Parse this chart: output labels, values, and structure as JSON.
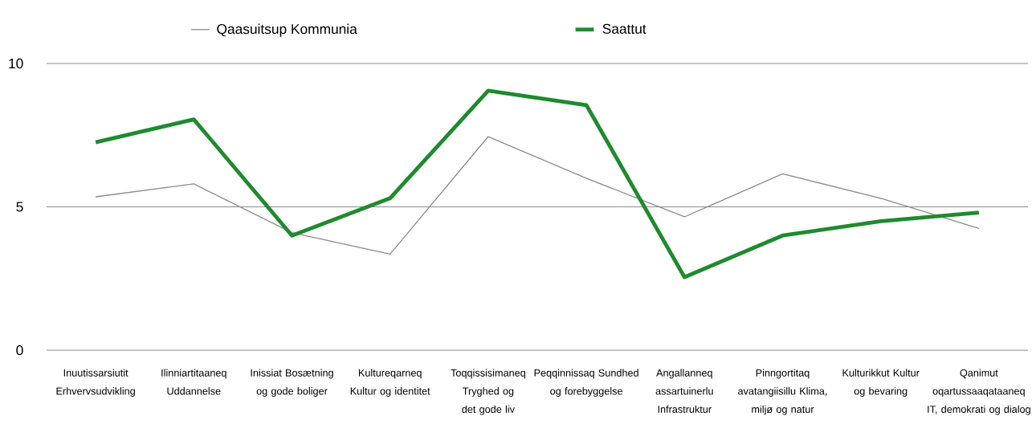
{
  "chart_data": {
    "type": "line",
    "categories": [
      "Inuutissarsiutit Erhvervsudvikling",
      "Ilinniartitaaneq Uddannelse",
      "Inissiat Bosætning og gode boliger",
      "Kultureqarneq Kultur og identitet",
      "Toqqissisimaneq Tryghed og det gode liv",
      "Peqqinnissaq Sundhed og forebyggelse",
      "Angallanneq assartuinerlu Infrastruktur",
      "Pinngortitaq avatangiisillu Klima, miljø og natur",
      "Kulturikkut Kultur og bevaring",
      "Qanimut oqartussaaqataaneq IT, demokrati og dialog"
    ],
    "series": [
      {
        "name": "Qaasuitsup Kommunia",
        "color": "#8c8c8c",
        "values": [
          5.35,
          5.8,
          4.1,
          3.35,
          7.45,
          6.0,
          4.65,
          6.15,
          5.3,
          4.25
        ]
      },
      {
        "name": "Saattut",
        "color": "#1f8a2e",
        "values": [
          7.25,
          8.05,
          4.0,
          5.3,
          9.05,
          8.55,
          2.55,
          4.0,
          4.5,
          4.8
        ]
      }
    ],
    "ylim": [
      0,
      10
    ],
    "yticks": [
      0,
      5,
      10
    ],
    "grid": "y",
    "legend": "top"
  }
}
